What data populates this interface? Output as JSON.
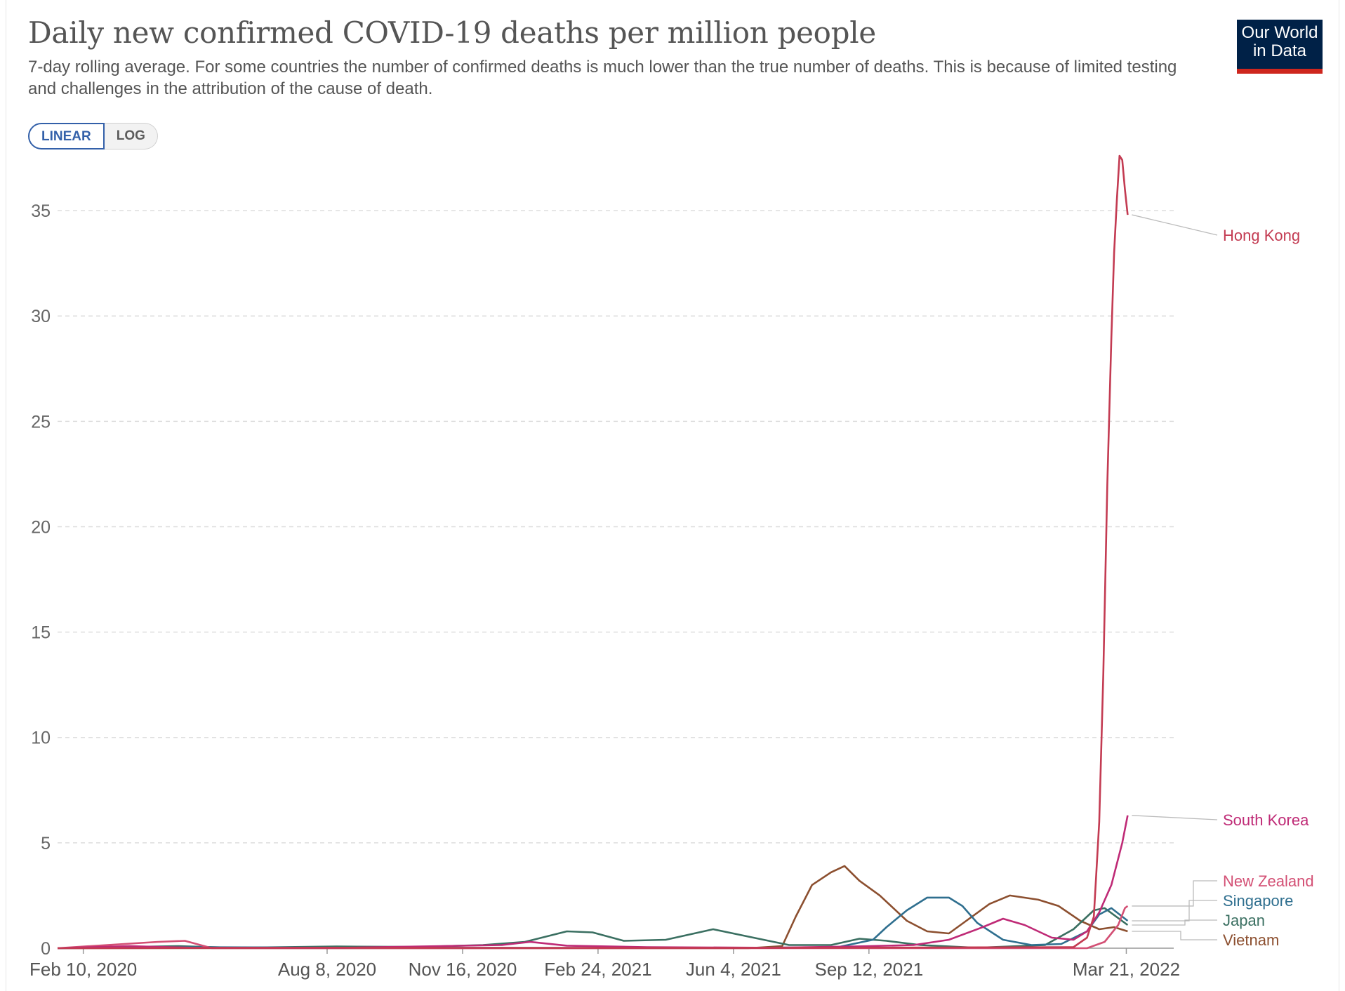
{
  "header": {
    "title": "Daily new confirmed COVID-19 deaths per million people",
    "subtitle": "7-day rolling average. For some countries the number of confirmed deaths is much lower than the true number of deaths. This is because of limited testing and challenges in the attribution of the cause of death.",
    "logo_line1": "Our World",
    "logo_line2": "in Data"
  },
  "controls": {
    "linear_label": "LINEAR",
    "log_label": "LOG",
    "active": "LINEAR"
  },
  "colors": {
    "accent": "#3360a9",
    "logo_bg": "#002147",
    "logo_stripe": "#ce261e",
    "grid": "#dddddd"
  },
  "chart_data": {
    "type": "line",
    "x_axis_type": "date",
    "xlim": [
      "2020-01-22",
      "2022-04-25"
    ],
    "ylim": [
      0,
      37
    ],
    "y_ticks": [
      0,
      5,
      10,
      15,
      20,
      25,
      30,
      35
    ],
    "x_tick_labels": [
      {
        "date": "2020-02-10",
        "label": "Feb 10, 2020"
      },
      {
        "date": "2020-08-08",
        "label": "Aug 8, 2020"
      },
      {
        "date": "2020-11-16",
        "label": "Nov 16, 2020"
      },
      {
        "date": "2021-02-24",
        "label": "Feb 24, 2021"
      },
      {
        "date": "2021-06-04",
        "label": "Jun 4, 2021"
      },
      {
        "date": "2021-09-12",
        "label": "Sep 12, 2021"
      },
      {
        "date": "2022-03-21",
        "label": "Mar 21, 2022"
      }
    ],
    "grid": "horizontal dashed",
    "legend": "line labels at right end",
    "series": [
      {
        "name": "Hong Kong",
        "color": "#c33b52",
        "points": [
          [
            "2020-01-22",
            0
          ],
          [
            "2020-08-01",
            0.02
          ],
          [
            "2021-06-01",
            0.01
          ],
          [
            "2022-02-10",
            0.05
          ],
          [
            "2022-02-20",
            0.5
          ],
          [
            "2022-02-25",
            1.5
          ],
          [
            "2022-03-01",
            6
          ],
          [
            "2022-03-04",
            13
          ],
          [
            "2022-03-07",
            22
          ],
          [
            "2022-03-10",
            29
          ],
          [
            "2022-03-12",
            33
          ],
          [
            "2022-03-14",
            35.5
          ],
          [
            "2022-03-16",
            37.6
          ],
          [
            "2022-03-18",
            37.4
          ],
          [
            "2022-03-20",
            36
          ],
          [
            "2022-03-22",
            34.8
          ]
        ]
      },
      {
        "name": "South Korea",
        "color": "#bf2a76",
        "points": [
          [
            "2020-01-22",
            0
          ],
          [
            "2020-03-15",
            0.1
          ],
          [
            "2020-05-01",
            0.02
          ],
          [
            "2020-08-20",
            0.02
          ],
          [
            "2020-12-15",
            0.15
          ],
          [
            "2021-01-05",
            0.3
          ],
          [
            "2021-02-01",
            0.12
          ],
          [
            "2021-04-01",
            0.05
          ],
          [
            "2021-07-01",
            0.02
          ],
          [
            "2021-09-01",
            0.08
          ],
          [
            "2021-10-15",
            0.15
          ],
          [
            "2021-11-10",
            0.4
          ],
          [
            "2021-12-05",
            1.0
          ],
          [
            "2021-12-20",
            1.4
          ],
          [
            "2022-01-05",
            1.1
          ],
          [
            "2022-01-25",
            0.5
          ],
          [
            "2022-02-10",
            0.4
          ],
          [
            "2022-02-20",
            0.8
          ],
          [
            "2022-03-01",
            1.7
          ],
          [
            "2022-03-10",
            3.0
          ],
          [
            "2022-03-18",
            5.0
          ],
          [
            "2022-03-22",
            6.3
          ]
        ]
      },
      {
        "name": "New Zealand",
        "color": "#d34f74",
        "points": [
          [
            "2020-01-22",
            0
          ],
          [
            "2020-04-05",
            0.3
          ],
          [
            "2020-04-25",
            0.35
          ],
          [
            "2020-05-15",
            0
          ],
          [
            "2021-01-01",
            0
          ],
          [
            "2022-02-20",
            0
          ],
          [
            "2022-03-05",
            0.3
          ],
          [
            "2022-03-15",
            1.1
          ],
          [
            "2022-03-20",
            1.9
          ],
          [
            "2022-03-22",
            2.0
          ]
        ]
      },
      {
        "name": "Singapore",
        "color": "#2f6f8f",
        "points": [
          [
            "2020-01-22",
            0
          ],
          [
            "2020-05-01",
            0.05
          ],
          [
            "2020-09-01",
            0.02
          ],
          [
            "2021-06-01",
            0.01
          ],
          [
            "2021-08-20",
            0.05
          ],
          [
            "2021-09-15",
            0.4
          ],
          [
            "2021-09-25",
            1.0
          ],
          [
            "2021-10-10",
            1.8
          ],
          [
            "2021-10-25",
            2.4
          ],
          [
            "2021-11-10",
            2.4
          ],
          [
            "2021-11-20",
            2.0
          ],
          [
            "2021-12-01",
            1.2
          ],
          [
            "2021-12-20",
            0.4
          ],
          [
            "2022-01-10",
            0.15
          ],
          [
            "2022-02-01",
            0.2
          ],
          [
            "2022-02-20",
            0.8
          ],
          [
            "2022-03-01",
            1.6
          ],
          [
            "2022-03-10",
            1.9
          ],
          [
            "2022-03-22",
            1.3
          ]
        ]
      },
      {
        "name": "Japan",
        "color": "#3a6f61",
        "points": [
          [
            "2020-01-22",
            0
          ],
          [
            "2020-04-20",
            0.1
          ],
          [
            "2020-06-01",
            0.02
          ],
          [
            "2020-08-15",
            0.08
          ],
          [
            "2020-10-15",
            0.06
          ],
          [
            "2020-12-01",
            0.15
          ],
          [
            "2021-01-01",
            0.3
          ],
          [
            "2021-02-01",
            0.8
          ],
          [
            "2021-02-20",
            0.75
          ],
          [
            "2021-03-15",
            0.35
          ],
          [
            "2021-04-15",
            0.4
          ],
          [
            "2021-05-20",
            0.9
          ],
          [
            "2021-06-15",
            0.55
          ],
          [
            "2021-07-15",
            0.15
          ],
          [
            "2021-08-15",
            0.15
          ],
          [
            "2021-09-05",
            0.45
          ],
          [
            "2021-09-25",
            0.35
          ],
          [
            "2021-10-20",
            0.15
          ],
          [
            "2021-12-01",
            0.02
          ],
          [
            "2022-01-20",
            0.15
          ],
          [
            "2022-02-10",
            0.9
          ],
          [
            "2022-02-25",
            1.8
          ],
          [
            "2022-03-05",
            1.9
          ],
          [
            "2022-03-22",
            1.1
          ]
        ]
      },
      {
        "name": "Vietnam",
        "color": "#8c4f2f",
        "points": [
          [
            "2020-01-22",
            0
          ],
          [
            "2021-06-15",
            0
          ],
          [
            "2021-07-10",
            0.1
          ],
          [
            "2021-07-20",
            1.5
          ],
          [
            "2021-08-01",
            3.0
          ],
          [
            "2021-08-15",
            3.6
          ],
          [
            "2021-08-25",
            3.9
          ],
          [
            "2021-09-05",
            3.2
          ],
          [
            "2021-09-20",
            2.5
          ],
          [
            "2021-10-10",
            1.3
          ],
          [
            "2021-10-25",
            0.8
          ],
          [
            "2021-11-10",
            0.7
          ],
          [
            "2021-11-25",
            1.4
          ],
          [
            "2021-12-10",
            2.1
          ],
          [
            "2021-12-25",
            2.5
          ],
          [
            "2022-01-15",
            2.3
          ],
          [
            "2022-01-30",
            2.0
          ],
          [
            "2022-02-15",
            1.3
          ],
          [
            "2022-03-01",
            0.9
          ],
          [
            "2022-03-12",
            1.0
          ],
          [
            "2022-03-22",
            0.8
          ]
        ]
      }
    ]
  }
}
